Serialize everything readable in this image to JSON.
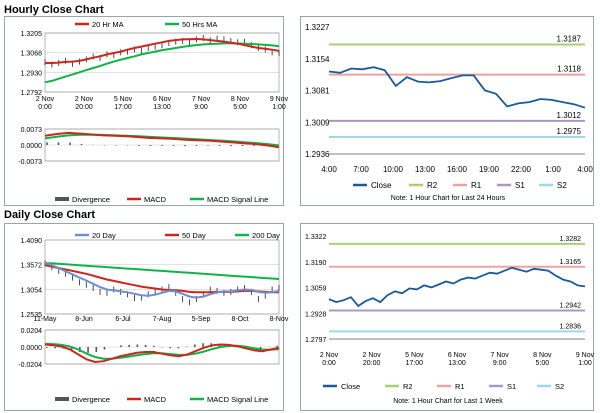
{
  "sections": {
    "hourly_title": "Hourly Close Chart",
    "daily_title": "Daily Close Chart"
  },
  "colors": {
    "ma_red": "#c8281e",
    "ma_green": "#12b24a",
    "ma_blue": "#6b8fcf",
    "price_blue": "#1a5a9a",
    "r2": "#a8d070",
    "r1": "#f0a0a0",
    "s1": "#a898c8",
    "s2": "#9ad8ec",
    "hist": "#555555"
  },
  "chart_data": [
    {
      "id": "hourly-price",
      "type": "line",
      "legend": [
        "20 Hr MA",
        "50 Hrs MA"
      ],
      "ylim": [
        1.2792,
        1.3205
      ],
      "y_ticks": [
        "1.3205",
        "1.3068",
        "1.2930",
        "1.2792"
      ],
      "x_ticks": [
        "2 Nov\n0:00",
        "2 Nov\n20:00",
        "5 Nov\n17:00",
        "6 Nov\n13:00",
        "7 Nov\n9:00",
        "8 Nov\n5:00",
        "9 Nov\n1:00"
      ],
      "series": [
        {
          "name": "Close",
          "values": [
            1.3,
            1.2985,
            1.2995,
            1.301,
            1.299,
            1.3005,
            1.302,
            1.304,
            1.303,
            1.3055,
            1.305,
            1.307,
            1.3075,
            1.309,
            1.308,
            1.31,
            1.311,
            1.312,
            1.3135,
            1.3145,
            1.315,
            1.314,
            1.316,
            1.317,
            1.3155,
            1.3165,
            1.316,
            1.315,
            1.314,
            1.3145,
            1.312,
            1.31,
            1.309,
            1.307,
            1.3065
          ]
        },
        {
          "name": "20 Hr MA",
          "values": [
            1.2995,
            1.2995,
            1.2998,
            1.3003,
            1.3005,
            1.301,
            1.302,
            1.3032,
            1.3042,
            1.3055,
            1.3065,
            1.3075,
            1.3088,
            1.31,
            1.311,
            1.312,
            1.313,
            1.314,
            1.315,
            1.3155,
            1.316,
            1.3162,
            1.3163,
            1.316,
            1.3155,
            1.315,
            1.3145,
            1.3138,
            1.313,
            1.312,
            1.311,
            1.31,
            1.3095,
            1.3088,
            1.308
          ]
        },
        {
          "name": "50 Hrs MA",
          "values": [
            1.286,
            1.287,
            1.2885,
            1.29,
            1.2915,
            1.293,
            1.2945,
            1.296,
            1.2975,
            1.299,
            1.3005,
            1.3018,
            1.303,
            1.3042,
            1.3055,
            1.3065,
            1.3075,
            1.3085,
            1.3092,
            1.31,
            1.3108,
            1.3115,
            1.312,
            1.3125,
            1.3128,
            1.313,
            1.3132,
            1.3132,
            1.3132,
            1.313,
            1.3128,
            1.3125,
            1.3122,
            1.3118,
            1.3112
          ]
        }
      ]
    },
    {
      "id": "hourly-macd",
      "type": "line",
      "legend": [
        "Divergence",
        "MACD",
        "MACD Signal Line"
      ],
      "ylim": [
        -0.0073,
        0.0073
      ],
      "y_ticks": [
        "0.0073",
        "0.0000",
        "-0.0073"
      ],
      "series": [
        {
          "name": "MACD",
          "values": [
            0.0042,
            0.005,
            0.0055,
            0.0052,
            0.0048,
            0.0044,
            0.0042,
            0.004,
            0.0036,
            0.0032,
            0.003,
            0.0028,
            0.0024,
            0.0022,
            0.002,
            0.0016,
            0.0012,
            0.0008,
            0.0004,
            -0.0002,
            -0.001
          ]
        },
        {
          "name": "MACD Signal Line",
          "values": [
            0.003,
            0.0038,
            0.0044,
            0.0047,
            0.0047,
            0.0046,
            0.0044,
            0.0042,
            0.004,
            0.0037,
            0.0034,
            0.0032,
            0.0029,
            0.0026,
            0.0023,
            0.002,
            0.0017,
            0.0013,
            0.0009,
            0.0004,
            -0.0002
          ]
        },
        {
          "name": "Divergence",
          "values": [
            0.0012,
            0.0012,
            0.0011,
            0.0005,
            0.0001,
            -0.0002,
            -0.0002,
            -0.0002,
            -0.0004,
            -0.0005,
            -0.0004,
            -0.0004,
            -0.0005,
            -0.0004,
            -0.0003,
            -0.0004,
            -0.0005,
            -0.0005,
            -0.0005,
            -0.0006,
            -0.0008
          ]
        }
      ]
    },
    {
      "id": "hourly-pivot",
      "type": "line",
      "ylim": [
        1.2936,
        1.3227
      ],
      "y_ticks": [
        "1.3227",
        "1.3154",
        "1.3081",
        "1.3009",
        "1.2936"
      ],
      "x_ticks": [
        "4:00",
        "7:00",
        "10:00",
        "13:00",
        "16:00",
        "19:00",
        "22:00",
        "1:00",
        "4:00"
      ],
      "levels": [
        {
          "name": "R2",
          "value": 1.3187,
          "label": "1.3187"
        },
        {
          "name": "R1",
          "value": 1.3118,
          "label": "1.3118"
        },
        {
          "name": "S1",
          "value": 1.3012,
          "label": "1.3012"
        },
        {
          "name": "S2",
          "value": 1.2975,
          "label": "1.2975"
        }
      ],
      "series": [
        {
          "name": "Close",
          "values": [
            1.3125,
            1.3122,
            1.3132,
            1.313,
            1.3135,
            1.3128,
            1.3092,
            1.3112,
            1.3102,
            1.31,
            1.3103,
            1.311,
            1.3116,
            1.3116,
            1.3082,
            1.3074,
            1.3045,
            1.3052,
            1.3055,
            1.3062,
            1.306,
            1.3055,
            1.305,
            1.3042
          ]
        }
      ],
      "legend": [
        "Close",
        "R2",
        "R1",
        "S1",
        "S2"
      ],
      "note": "Note: 1 Hour Chart for Last 24 Hours"
    },
    {
      "id": "daily-price",
      "type": "line",
      "legend": [
        "20 Day",
        "50 Day",
        "200 Day"
      ],
      "ylim": [
        1.2535,
        1.409
      ],
      "y_ticks": [
        "1.4090",
        "1.3572",
        "1.3054",
        "1.2535"
      ],
      "x_ticks": [
        "11-May",
        "8-Jun",
        "6-Jul",
        "7-Aug",
        "5-Sep",
        "8-Oct",
        "8-Nov"
      ],
      "series": [
        {
          "name": "Close",
          "values": [
            1.36,
            1.352,
            1.344,
            1.338,
            1.33,
            1.32,
            1.315,
            1.308,
            1.3,
            1.298,
            1.305,
            1.3,
            1.295,
            1.287,
            1.288,
            1.295,
            1.3,
            1.305,
            1.31,
            1.298,
            1.285,
            1.278,
            1.285,
            1.295,
            1.305,
            1.302,
            1.298,
            1.3,
            1.305,
            1.308,
            1.3,
            1.285,
            1.292,
            1.305,
            1.308
          ]
        },
        {
          "name": "20 Day",
          "values": [
            1.362,
            1.356,
            1.35,
            1.343,
            1.337,
            1.33,
            1.324,
            1.317,
            1.31,
            1.305,
            1.303,
            1.301,
            1.299,
            1.296,
            1.293,
            1.292,
            1.294,
            1.298,
            1.302,
            1.301,
            1.296,
            1.29,
            1.288,
            1.29,
            1.295,
            1.299,
            1.301,
            1.301,
            1.303,
            1.305,
            1.304,
            1.3,
            1.298,
            1.299,
            1.302
          ]
        },
        {
          "name": "50 Day",
          "values": [
            1.356,
            1.353,
            1.35,
            1.347,
            1.344,
            1.341,
            1.338,
            1.334,
            1.33,
            1.326,
            1.323,
            1.32,
            1.317,
            1.314,
            1.311,
            1.309,
            1.307,
            1.305,
            1.304,
            1.303,
            1.302,
            1.3,
            1.299,
            1.299,
            1.299,
            1.3,
            1.3,
            1.3,
            1.301,
            1.302,
            1.302,
            1.301,
            1.3,
            1.299,
            1.299
          ]
        },
        {
          "name": "200 Day",
          "values": [
            1.36,
            1.36,
            1.359,
            1.358,
            1.357,
            1.356,
            1.355,
            1.354,
            1.353,
            1.352,
            1.351,
            1.35,
            1.349,
            1.348,
            1.347,
            1.346,
            1.345,
            1.344,
            1.343,
            1.342,
            1.341,
            1.34,
            1.339,
            1.338,
            1.337,
            1.336,
            1.335,
            1.334,
            1.333,
            1.332,
            1.331,
            1.33,
            1.329,
            1.328,
            1.327
          ]
        }
      ]
    },
    {
      "id": "daily-macd",
      "type": "line",
      "legend": [
        "Divergence",
        "MACD",
        "MACD Signal Line"
      ],
      "ylim": [
        -0.0204,
        0.0204
      ],
      "y_ticks": [
        "0.0204",
        "0.0000",
        "-0.0204"
      ],
      "series": [
        {
          "name": "MACD",
          "values": [
            0.003,
            0.002,
            0.0005,
            -0.003,
            -0.009,
            -0.015,
            -0.018,
            -0.017,
            -0.014,
            -0.011,
            -0.009,
            -0.007,
            -0.006,
            -0.006,
            -0.008,
            -0.01,
            -0.011,
            -0.009,
            -0.005,
            -0.001,
            0.002,
            0.003,
            0.0025,
            0.001,
            -0.0015,
            -0.004,
            -0.005,
            -0.003,
            -0.001
          ]
        },
        {
          "name": "MACD Signal Line",
          "values": [
            0.004,
            0.0035,
            0.0025,
            0.0005,
            -0.003,
            -0.008,
            -0.012,
            -0.014,
            -0.014,
            -0.013,
            -0.0115,
            -0.01,
            -0.0085,
            -0.0075,
            -0.0075,
            -0.0085,
            -0.0095,
            -0.0095,
            -0.008,
            -0.0055,
            -0.0025,
            0.0,
            0.0012,
            0.0014,
            0.0005,
            -0.0015,
            -0.003,
            -0.0032,
            -0.0025
          ]
        },
        {
          "name": "Divergence",
          "values": [
            -0.001,
            -0.0015,
            -0.002,
            -0.0035,
            -0.006,
            -0.007,
            -0.006,
            -0.003,
            0.0,
            0.002,
            0.0025,
            0.003,
            0.0025,
            0.0015,
            -0.0005,
            -0.0015,
            -0.0015,
            0.0005,
            0.003,
            0.0045,
            0.0045,
            0.003,
            0.0013,
            -0.0004,
            -0.002,
            -0.0025,
            -0.002,
            0.0002,
            0.0015
          ]
        }
      ]
    },
    {
      "id": "daily-pivot",
      "type": "line",
      "ylim": [
        1.2797,
        1.3322
      ],
      "y_ticks": [
        "1.3322",
        "1.3190",
        "1.3059",
        "1.2928",
        "1.2797"
      ],
      "x_ticks": [
        "2 Nov\n0:00",
        "2 Nov\n20:00",
        "5 Nov\n17:00",
        "6 Nov\n13:00",
        "7 Nov\n9:00",
        "8 Nov\n5:00",
        "9 Nov\n1:00"
      ],
      "levels": [
        {
          "name": "R2",
          "value": 1.3282,
          "label": "1.3282"
        },
        {
          "name": "R1",
          "value": 1.3165,
          "label": "1.3165"
        },
        {
          "name": "S1",
          "value": 1.2942,
          "label": "1.2942"
        },
        {
          "name": "S2",
          "value": 1.2836,
          "label": "1.2836"
        }
      ],
      "series": [
        {
          "name": "Close",
          "values": [
            1.3,
            1.2985,
            1.2995,
            1.301,
            1.2965,
            1.299,
            1.3005,
            1.2985,
            1.302,
            1.304,
            1.303,
            1.3055,
            1.305,
            1.307,
            1.306,
            1.3075,
            1.309,
            1.308,
            1.31,
            1.311,
            1.3105,
            1.312,
            1.3135,
            1.313,
            1.3145,
            1.316,
            1.315,
            1.314,
            1.3155,
            1.315,
            1.3145,
            1.312,
            1.31,
            1.309,
            1.307,
            1.3065
          ]
        }
      ],
      "legend": [
        "Close",
        "R2",
        "R1",
        "S1",
        "S2"
      ],
      "note": "Note: 1 Hour Chart for Last 1 Week"
    }
  ]
}
